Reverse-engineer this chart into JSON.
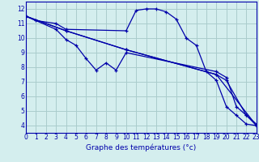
{
  "bg_color": "#d4eeee",
  "grid_color": "#aacccc",
  "line_color": "#0000aa",
  "xlabel": "Graphe des températures (°c)",
  "xlim": [
    0,
    23
  ],
  "ylim": [
    3.5,
    12.5
  ],
  "yticks": [
    4,
    5,
    6,
    7,
    8,
    9,
    10,
    11,
    12
  ],
  "xticks": [
    0,
    1,
    2,
    3,
    4,
    5,
    6,
    7,
    8,
    9,
    10,
    11,
    12,
    13,
    14,
    15,
    16,
    17,
    18,
    19,
    20,
    21,
    22,
    23
  ],
  "series": [
    {
      "x": [
        0,
        1,
        3,
        4,
        10,
        11,
        12,
        13,
        14,
        15,
        16,
        17,
        18,
        19,
        20,
        21,
        22,
        23
      ],
      "y": [
        11.5,
        11.2,
        11.0,
        10.6,
        10.5,
        11.9,
        12.0,
        12.0,
        11.8,
        11.3,
        10.0,
        9.5,
        7.7,
        7.1,
        5.3,
        4.7,
        4.1,
        4.0
      ]
    },
    {
      "x": [
        0,
        3,
        4,
        5,
        6,
        7,
        8,
        9,
        10,
        19,
        20,
        21,
        22,
        23
      ],
      "y": [
        11.5,
        10.6,
        9.9,
        9.5,
        8.6,
        7.8,
        8.3,
        7.8,
        9.0,
        7.7,
        7.3,
        5.3,
        4.7,
        4.1
      ]
    },
    {
      "x": [
        0,
        4,
        10,
        19,
        23
      ],
      "y": [
        11.5,
        10.5,
        9.2,
        7.5,
        4.0
      ]
    },
    {
      "x": [
        0,
        4,
        10,
        19,
        20,
        22,
        23
      ],
      "y": [
        11.5,
        10.5,
        9.2,
        7.5,
        7.1,
        4.7,
        4.0
      ]
    }
  ]
}
